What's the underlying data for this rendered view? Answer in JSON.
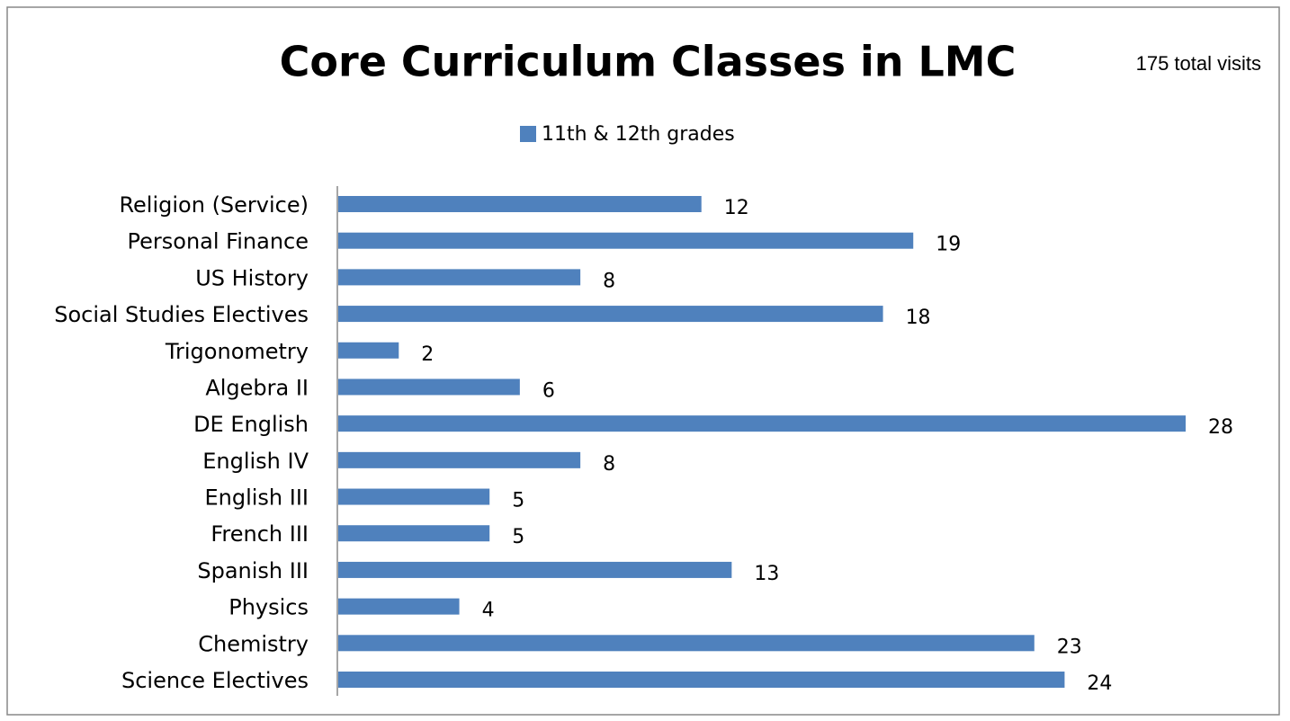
{
  "chart_data": {
    "type": "bar",
    "orientation": "horizontal",
    "title": "Core Curriculum Classes in LMC",
    "annotation": "175 total visits",
    "categories": [
      "Religion (Service)",
      "Personal Finance",
      "US History",
      "Social Studies Electives",
      "Trigonometry",
      "Algebra II",
      "DE English",
      "English IV",
      "English III",
      "French III",
      "Spanish III",
      "Physics",
      "Chemistry",
      "Science Electives"
    ],
    "series": [
      {
        "name": "11th & 12th grades",
        "color": "#4f81bd",
        "values": [
          12,
          19,
          8,
          18,
          2,
          6,
          28,
          8,
          5,
          5,
          13,
          4,
          23,
          24
        ]
      }
    ],
    "legend": "top"
  }
}
